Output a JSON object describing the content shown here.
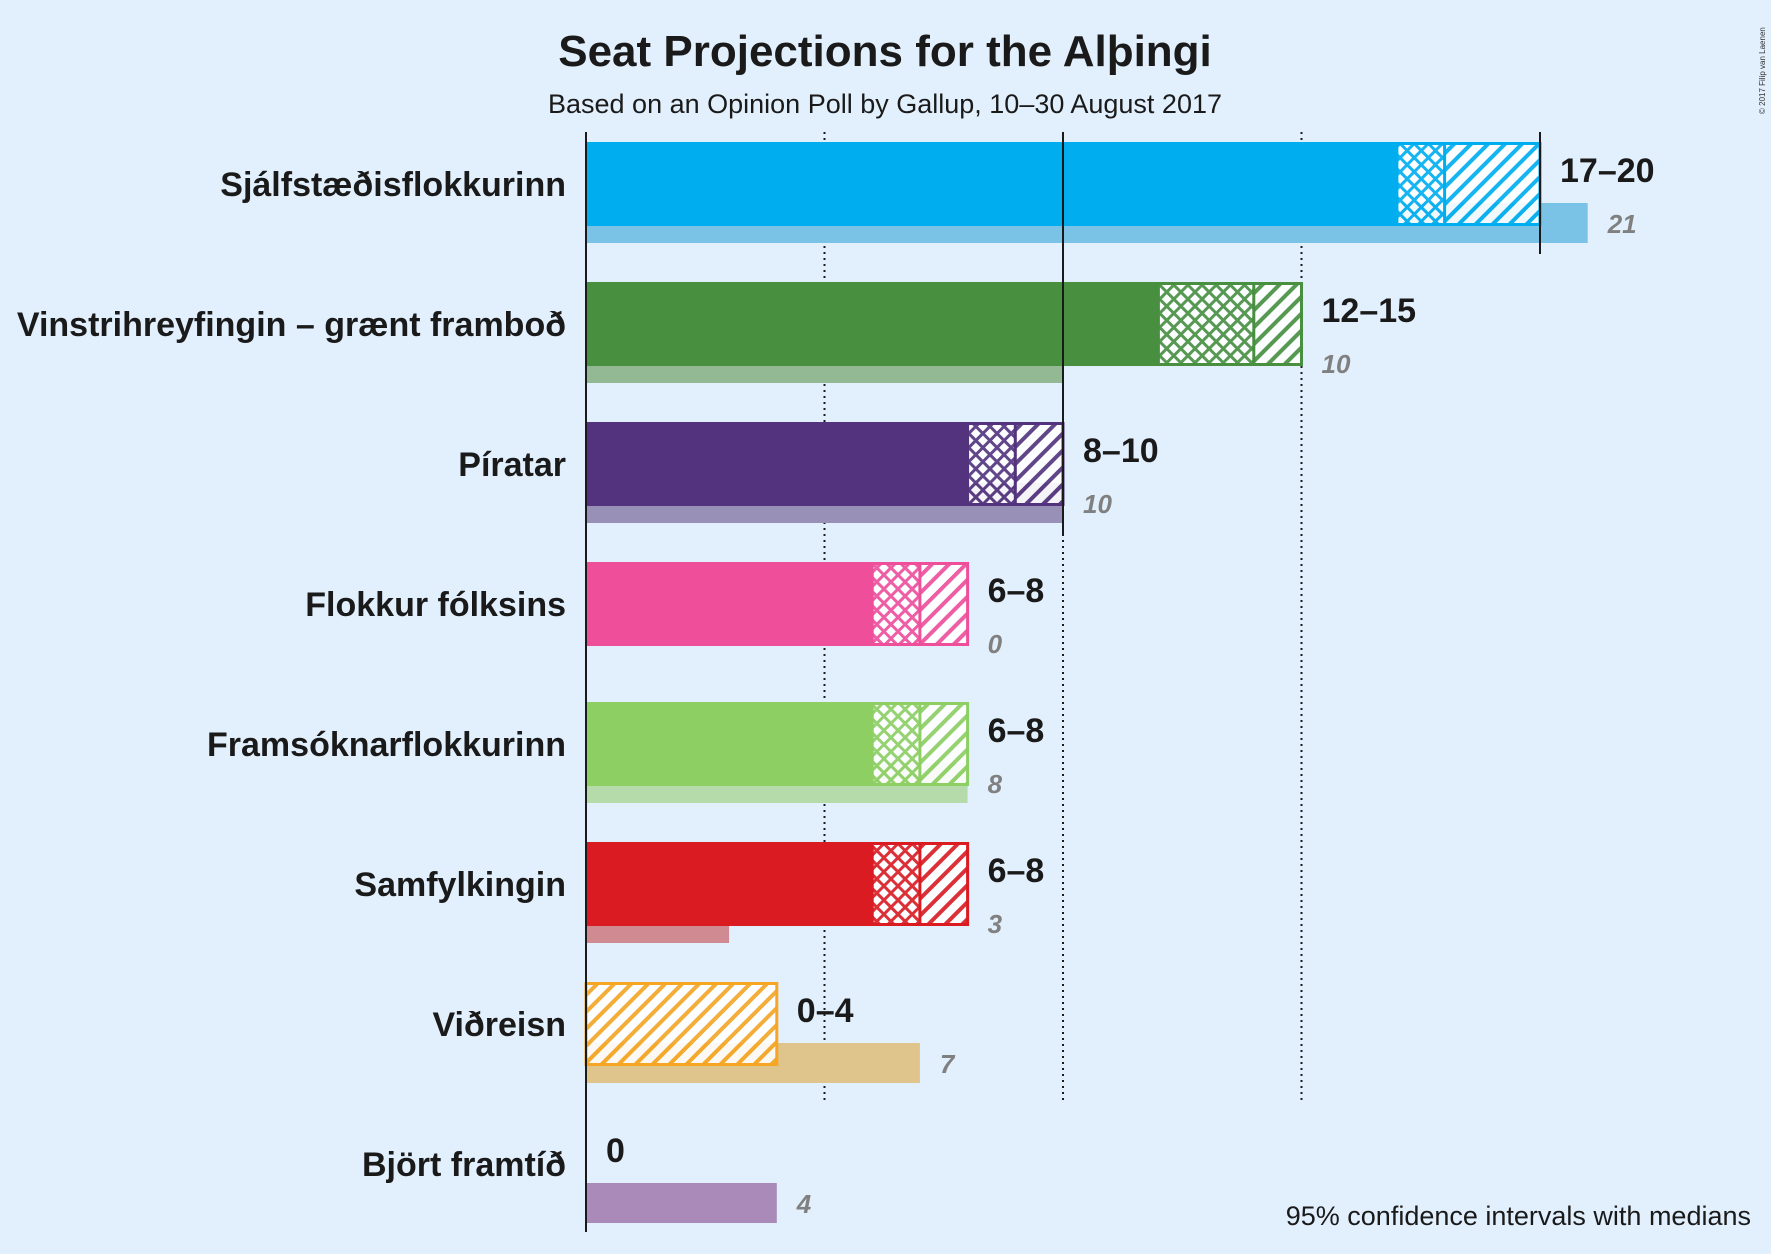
{
  "title": "Seat Projections for the Alþingi",
  "subtitle": "Based on an Opinion Poll by Gallup, 10–30 August 2017",
  "note": "95% confidence intervals with medians",
  "copyright": "© 2017 Filip van Laenen",
  "chart_data": {
    "type": "bar",
    "orientation": "horizontal",
    "title": "Seat Projections for the Alþingi",
    "subtitle": "Based on an Opinion Poll by Gallup, 10–30 August 2017",
    "xlim": [
      0,
      21
    ],
    "gridlines": [
      5,
      10,
      15
    ],
    "majority_lines": [
      10,
      20
    ],
    "parties": [
      {
        "name": "Sjálfstæðisflokkurinn",
        "low": 17,
        "median": 18,
        "high": 20,
        "range_label": "17–20",
        "last": 21,
        "last_label": "21",
        "color": "#00aeef",
        "last_color": "#7ac3e6"
      },
      {
        "name": "Vinstrihreyfingin – grænt framboð",
        "low": 12,
        "median": 14,
        "high": 15,
        "range_label": "12–15",
        "last": 10,
        "last_label": "10",
        "color": "#488f40",
        "last_color": "#93b894"
      },
      {
        "name": "Píratar",
        "low": 8,
        "median": 9,
        "high": 10,
        "range_label": "8–10",
        "last": 10,
        "last_label": "10",
        "color": "#53337d",
        "last_color": "#9990b8"
      },
      {
        "name": "Flokkur fólksins",
        "low": 6,
        "median": 7,
        "high": 8,
        "range_label": "6–8",
        "last": 0,
        "last_label": "0",
        "color": "#ef4e9b",
        "last_color": "#f2a5c9"
      },
      {
        "name": "Framsóknarflokkurinn",
        "low": 6,
        "median": 7,
        "high": 8,
        "range_label": "6–8",
        "last": 8,
        "last_label": "8",
        "color": "#8ecf63",
        "last_color": "#b6dbaa"
      },
      {
        "name": "Samfylkingin",
        "low": 6,
        "median": 7,
        "high": 8,
        "range_label": "6–8",
        "last": 3,
        "last_label": "3",
        "color": "#da1b22",
        "last_color": "#d08a92"
      },
      {
        "name": "Viðreisn",
        "low": 0,
        "median": 0,
        "high": 4,
        "range_label": "0–4",
        "last": 7,
        "last_label": "7",
        "color": "#f6a623",
        "last_color": "#dfc48b"
      },
      {
        "name": "Björt framtíð",
        "low": 0,
        "median": 0,
        "high": 0,
        "range_label": "0",
        "last": 4,
        "last_label": "4",
        "color": "#a98ab8",
        "last_color": "#a98ab8"
      }
    ]
  }
}
